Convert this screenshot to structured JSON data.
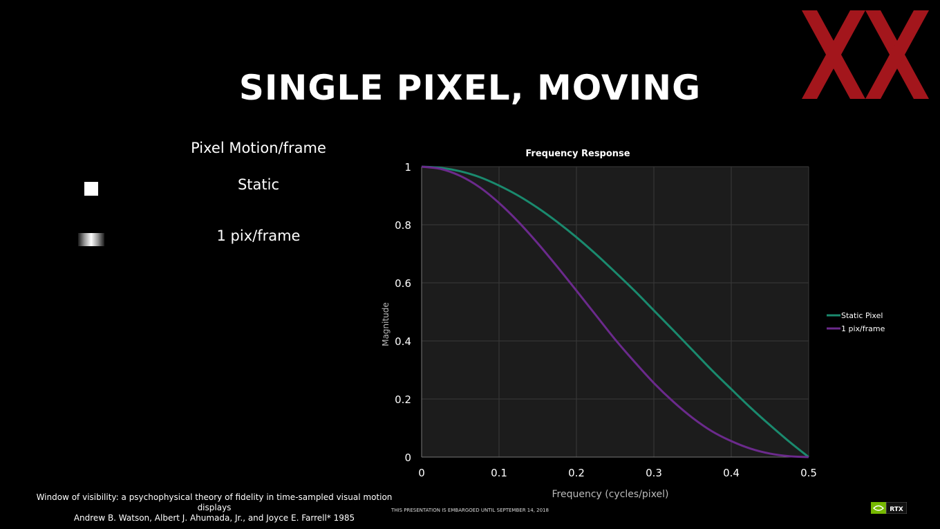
{
  "slide": {
    "title": "SINGLE PIXEL, MOVING",
    "motion_heading": "Pixel Motion/frame",
    "rows": [
      {
        "label": "Static"
      },
      {
        "label": "1 pix/frame"
      }
    ],
    "citation_line1": "Window of visibility: a psychophysical theory of fidelity in time-sampled visual motion displays",
    "citation_line2": "Andrew B. Watson, Albert J. Ahumada, Jr., and Joyce E. Farrell* 1985",
    "embargo": "THIS PRESENTATION IS EMBARGOED UNTIL SEPTEMBER 14, 2018",
    "badge_text": "RTX",
    "colors": {
      "logo": "#a3161c",
      "badge": "#76b900"
    }
  },
  "chart_data": {
    "type": "line",
    "title": "Frequency Response",
    "xlabel": "Frequency (cycles/pixel)",
    "ylabel": "Magnitude",
    "xlim": [
      0,
      0.5
    ],
    "ylim": [
      0,
      1
    ],
    "xticks": [
      "0",
      "0.1",
      "0.2",
      "0.3",
      "0.4",
      "0.5"
    ],
    "yticks": [
      "0",
      "0.2",
      "0.4",
      "0.6",
      "0.8",
      "1"
    ],
    "grid": true,
    "legend_position": "right",
    "x": [
      0,
      0.025,
      0.05,
      0.075,
      0.1,
      0.125,
      0.15,
      0.175,
      0.2,
      0.225,
      0.25,
      0.275,
      0.3,
      0.325,
      0.35,
      0.375,
      0.4,
      0.425,
      0.45,
      0.475,
      0.5
    ],
    "series": [
      {
        "name": "Static Pixel",
        "color": "#1a8a6e",
        "values": [
          1,
          0.996,
          0.984,
          0.964,
          0.935,
          0.9,
          0.858,
          0.81,
          0.757,
          0.699,
          0.637,
          0.573,
          0.505,
          0.437,
          0.368,
          0.299,
          0.234,
          0.17,
          0.11,
          0.053,
          0
        ]
      },
      {
        "name": "1 pix/frame",
        "color": "#6b2a8c",
        "values": [
          1,
          0.992,
          0.968,
          0.929,
          0.875,
          0.81,
          0.736,
          0.656,
          0.573,
          0.489,
          0.405,
          0.328,
          0.255,
          0.191,
          0.135,
          0.089,
          0.055,
          0.029,
          0.012,
          0.003,
          0
        ]
      }
    ]
  }
}
